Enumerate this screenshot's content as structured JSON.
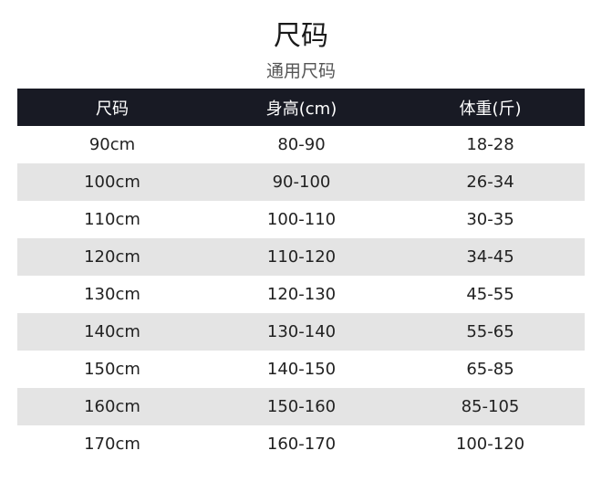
{
  "title": "尺码",
  "subtitle": "通用尺码",
  "table": {
    "headers": [
      "尺码",
      "身高(cm)",
      "体重(斤)"
    ],
    "rows": [
      [
        "90cm",
        "80-90",
        "18-28"
      ],
      [
        "100cm",
        "90-100",
        "26-34"
      ],
      [
        "110cm",
        "100-110",
        "30-35"
      ],
      [
        "120cm",
        "110-120",
        "34-45"
      ],
      [
        "130cm",
        "120-130",
        "45-55"
      ],
      [
        "140cm",
        "130-140",
        "55-65"
      ],
      [
        "150cm",
        "140-150",
        "65-85"
      ],
      [
        "160cm",
        "150-160",
        "85-105"
      ],
      [
        "170cm",
        "160-170",
        "100-120"
      ]
    ]
  },
  "colors": {
    "header_bg": "#181a24",
    "alt_row_bg": "#e4e4e4"
  }
}
